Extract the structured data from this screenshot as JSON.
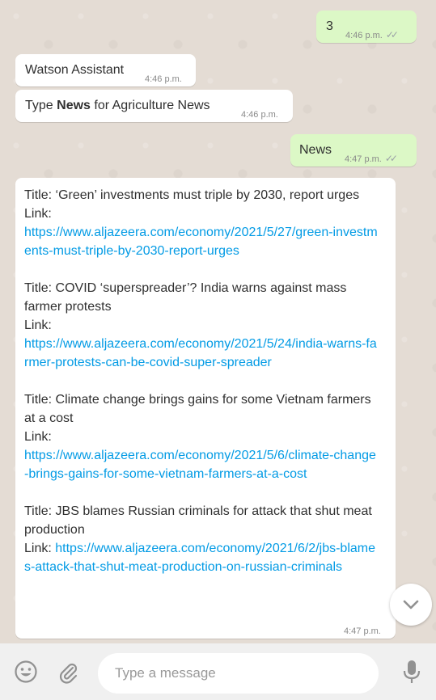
{
  "messages": {
    "m1": {
      "text": "3",
      "time": "4:46 p.m."
    },
    "m2": {
      "text": "Watson Assistant",
      "time": "4:46 p.m."
    },
    "m3": {
      "prefix": "Type ",
      "bold": "News",
      "suffix": " for Agriculture News",
      "time": "4:46 p.m."
    },
    "m4": {
      "text": "News",
      "time": "4:47 p.m."
    },
    "m5": {
      "time": "4:47 p.m.",
      "items": [
        {
          "title": "Title: ‘Green’ investments must triple by 2030, report urges",
          "link_label": "Link:",
          "link": "https://www.aljazeera.com/economy/2021/5/27/green-investments-must-triple-by-2030-report-urges"
        },
        {
          "title": "Title: COVID ‘superspreader’? India warns against mass farmer protests",
          "link_label": "Link:",
          "link": "https://www.aljazeera.com/economy/2021/5/24/india-warns-farmer-protests-can-be-covid-super-spreader"
        },
        {
          "title": "Title: Climate change brings gains for some Vietnam farmers at a cost",
          "link_label": "Link:",
          "link": "https://www.aljazeera.com/economy/2021/5/6/climate-change-brings-gains-for-some-vietnam-farmers-at-a-cost"
        },
        {
          "title": "Title: JBS blames Russian criminals for attack that shut meat production",
          "link_label": "Link:",
          "link": "https://www.aljazeera.com/economy/2021/6/2/jbs-blames-attack-that-shut-meat-production-on-russian-criminals"
        }
      ]
    }
  },
  "composer": {
    "placeholder": "Type a message"
  },
  "icons": [
    "emoji-icon",
    "attach-icon",
    "mic-icon",
    "chevron-down-icon",
    "double-check-icon"
  ]
}
